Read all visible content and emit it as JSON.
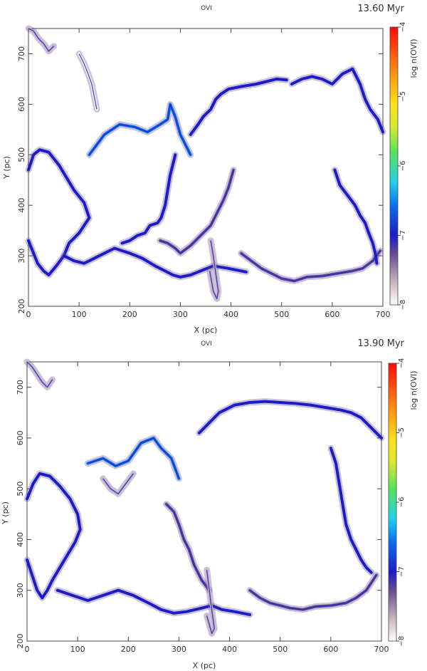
{
  "chart_data": [
    {
      "type": "heatmap",
      "title": "OVI",
      "time_label": "13.60 Myr",
      "xlabel": "X (pc)",
      "ylabel": "Y (pc)",
      "xlim": [
        0,
        700
      ],
      "ylim": [
        200,
        750
      ],
      "xticks": [
        0,
        100,
        200,
        300,
        400,
        500,
        600,
        700
      ],
      "yticks": [
        200,
        300,
        400,
        500,
        600,
        700
      ],
      "colorbar": {
        "label": "log n(OVI)",
        "range": [
          -8,
          -4
        ],
        "ticks": [
          -8,
          -7,
          -6,
          -5,
          -4
        ]
      },
      "features": [
        {
          "x": [
            0,
            10,
            22,
            40,
            60,
            75,
            90,
            110,
            120,
            100,
            80,
            70,
            55,
            40,
            30,
            18,
            8,
            0
          ],
          "y": [
            470,
            500,
            510,
            505,
            480,
            455,
            430,
            405,
            375,
            345,
            325,
            300,
            280,
            262,
            270,
            285,
            310,
            330
          ],
          "level": -6.8
        },
        {
          "x": [
            70,
            90,
            110,
            140,
            170,
            200,
            225,
            250,
            270,
            285,
            300,
            320,
            340,
            365,
            395,
            430
          ],
          "y": [
            300,
            290,
            285,
            300,
            315,
            305,
            295,
            280,
            270,
            262,
            258,
            262,
            270,
            280,
            275,
            268
          ],
          "level": -6.9
        },
        {
          "x": [
            120,
            150,
            180,
            210,
            235,
            260,
            275,
            280,
            290,
            300,
            320
          ],
          "y": [
            500,
            540,
            560,
            555,
            545,
            560,
            570,
            600,
            575,
            540,
            500
          ],
          "level": -6.4
        },
        {
          "x": [
            185,
            200,
            215,
            230,
            240,
            255,
            262,
            270,
            275,
            280,
            285,
            290
          ],
          "y": [
            325,
            330,
            340,
            345,
            360,
            365,
            375,
            400,
            430,
            460,
            480,
            500
          ],
          "level": -7.0
        },
        {
          "x": [
            260,
            275,
            290,
            300,
            320,
            345,
            360,
            370,
            385,
            395,
            405
          ],
          "y": [
            330,
            325,
            315,
            305,
            320,
            345,
            360,
            380,
            410,
            435,
            470
          ],
          "level": -7.2
        },
        {
          "x": [
            360,
            365,
            370,
            375,
            372,
            365,
            358
          ],
          "y": [
            330,
            300,
            265,
            230,
            215,
            230,
            270
          ],
          "level": -7.4
        },
        {
          "x": [
            320,
            335,
            345,
            360,
            370,
            380,
            395,
            420,
            450,
            470,
            490,
            510
          ],
          "y": [
            540,
            560,
            575,
            590,
            610,
            620,
            630,
            635,
            640,
            645,
            650,
            648
          ],
          "level": -6.9
        },
        {
          "x": [
            420,
            440,
            460,
            480,
            500,
            525,
            550,
            580,
            610,
            640,
            660,
            680,
            695
          ],
          "y": [
            305,
            290,
            275,
            265,
            255,
            250,
            258,
            260,
            265,
            270,
            275,
            290,
            310
          ],
          "level": -7.1
        },
        {
          "x": [
            520,
            540,
            560,
            580,
            600,
            620,
            640,
            655,
            665,
            675,
            690,
            700
          ],
          "y": [
            640,
            650,
            655,
            650,
            640,
            660,
            670,
            640,
            610,
            590,
            570,
            545
          ],
          "level": -6.8
        },
        {
          "x": [
            605,
            615,
            630,
            645,
            655,
            665,
            672,
            680,
            685,
            688
          ],
          "y": [
            470,
            440,
            420,
            400,
            380,
            365,
            345,
            325,
            305,
            285
          ],
          "level": -7.0
        },
        {
          "x": [
            0,
            10,
            20,
            30,
            40,
            50
          ],
          "y": [
            750,
            745,
            730,
            720,
            705,
            715
          ],
          "level": -7.5
        },
        {
          "x": [
            100,
            110,
            118,
            125,
            130,
            135
          ],
          "y": [
            700,
            680,
            660,
            640,
            615,
            590
          ],
          "level": -7.8
        }
      ]
    },
    {
      "type": "heatmap",
      "title": "OVI",
      "time_label": "13.90 Myr",
      "xlabel": "X (pc)",
      "ylabel": "Y (pc)",
      "xlim": [
        0,
        700
      ],
      "ylim": [
        200,
        750
      ],
      "xticks": [
        0,
        100,
        200,
        300,
        400,
        500,
        600,
        700
      ],
      "yticks": [
        200,
        300,
        400,
        500,
        600,
        700
      ],
      "colorbar": {
        "label": "log n(OVI)",
        "range": [
          -8,
          -4
        ],
        "ticks": [
          -8,
          -7,
          -6,
          -5,
          -4
        ]
      },
      "features": [
        {
          "x": [
            0,
            12,
            25,
            45,
            65,
            85,
            100,
            105,
            95,
            80,
            65,
            50,
            40,
            30,
            20,
            10,
            0
          ],
          "y": [
            480,
            510,
            530,
            525,
            505,
            480,
            450,
            420,
            395,
            370,
            345,
            320,
            300,
            285,
            300,
            330,
            360
          ],
          "level": -6.8
        },
        {
          "x": [
            60,
            90,
            120,
            150,
            180,
            210,
            240,
            265,
            290,
            315,
            345,
            365,
            385,
            410,
            440
          ],
          "y": [
            300,
            290,
            280,
            290,
            300,
            290,
            275,
            262,
            255,
            258,
            265,
            270,
            262,
            258,
            252
          ],
          "level": -7.0
        },
        {
          "x": [
            120,
            150,
            175,
            200,
            225,
            250,
            265,
            285,
            300
          ],
          "y": [
            550,
            560,
            545,
            555,
            590,
            600,
            580,
            560,
            520
          ],
          "level": -6.6
        },
        {
          "x": [
            275,
            290,
            300,
            310,
            320,
            330,
            345,
            360
          ],
          "y": [
            470,
            455,
            430,
            400,
            380,
            350,
            320,
            300
          ],
          "level": -7.1
        },
        {
          "x": [
            355,
            360,
            365,
            370,
            365,
            355
          ],
          "y": [
            340,
            300,
            260,
            225,
            215,
            250
          ],
          "level": -7.4
        },
        {
          "x": [
            340,
            360,
            380,
            410,
            440,
            470,
            500,
            530,
            560,
            590,
            620,
            640,
            660,
            680,
            700
          ],
          "y": [
            610,
            630,
            650,
            665,
            670,
            672,
            670,
            668,
            665,
            660,
            655,
            650,
            640,
            620,
            600
          ],
          "level": -6.9
        },
        {
          "x": [
            440,
            460,
            480,
            500,
            520,
            545,
            570,
            600,
            630,
            650,
            670,
            690
          ],
          "y": [
            300,
            285,
            275,
            270,
            265,
            262,
            268,
            270,
            275,
            285,
            300,
            330
          ],
          "level": -7.1
        },
        {
          "x": [
            600,
            610,
            615,
            620,
            625,
            630,
            640,
            650,
            660,
            670,
            680
          ],
          "y": [
            580,
            550,
            520,
            490,
            460,
            430,
            400,
            380,
            360,
            345,
            335
          ],
          "level": -7.0
        },
        {
          "x": [
            0,
            10,
            20,
            30,
            40,
            50
          ],
          "y": [
            750,
            740,
            725,
            710,
            700,
            715
          ],
          "level": -7.6
        },
        {
          "x": [
            150,
            165,
            180,
            195,
            210
          ],
          "y": [
            520,
            500,
            490,
            510,
            530
          ],
          "level": -7.7
        }
      ]
    }
  ]
}
